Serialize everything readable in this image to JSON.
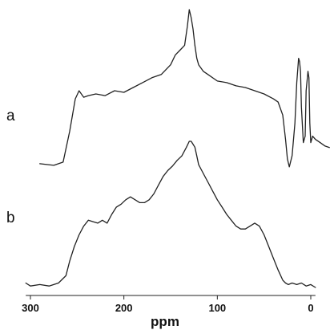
{
  "chart_data": {
    "type": "line",
    "xlabel": "ppm",
    "x_reversed": true,
    "xlim": [
      305,
      -5
    ],
    "xticks": [
      300,
      200,
      100,
      0
    ],
    "x_tick_labels": [
      "300",
      "200",
      "100",
      "0"
    ],
    "grid": false,
    "legend": "none",
    "series": [
      {
        "name": "a",
        "x": [
          290,
          275,
          265,
          258,
          252,
          248,
          243,
          238,
          230,
          220,
          210,
          200,
          190,
          180,
          170,
          160,
          150,
          145,
          140,
          135,
          132,
          130,
          128,
          126,
          124,
          122,
          120,
          115,
          110,
          100,
          90,
          80,
          70,
          60,
          50,
          40,
          35,
          30,
          27,
          25,
          23,
          20,
          17,
          15,
          13,
          12,
          11,
          10,
          8,
          6,
          5,
          3,
          2,
          1,
          0,
          -2,
          -5,
          -10,
          -15,
          -20
        ],
        "y": [
          0.05,
          0.04,
          0.06,
          0.25,
          0.45,
          0.5,
          0.46,
          0.47,
          0.48,
          0.47,
          0.5,
          0.49,
          0.52,
          0.55,
          0.58,
          0.6,
          0.66,
          0.72,
          0.75,
          0.78,
          0.9,
          1.0,
          0.95,
          0.88,
          0.78,
          0.7,
          0.66,
          0.62,
          0.6,
          0.56,
          0.55,
          0.53,
          0.52,
          0.5,
          0.48,
          0.45,
          0.43,
          0.35,
          0.2,
          0.08,
          0.03,
          0.1,
          0.3,
          0.55,
          0.7,
          0.68,
          0.62,
          0.4,
          0.18,
          0.22,
          0.5,
          0.62,
          0.58,
          0.3,
          0.18,
          0.22,
          0.2,
          0.18,
          0.16,
          0.15
        ]
      },
      {
        "name": "b",
        "x": [
          305,
          300,
          290,
          280,
          270,
          262,
          258,
          253,
          248,
          243,
          238,
          233,
          228,
          223,
          218,
          213,
          208,
          203,
          198,
          193,
          188,
          183,
          178,
          173,
          168,
          163,
          158,
          153,
          148,
          143,
          138,
          133,
          130,
          128,
          126,
          124,
          122,
          120,
          115,
          110,
          105,
          100,
          95,
          90,
          85,
          80,
          75,
          70,
          65,
          60,
          55,
          50,
          45,
          40,
          35,
          30,
          27,
          24,
          20,
          15,
          10,
          5,
          0,
          -5
        ],
        "y": [
          0.03,
          0.01,
          0.02,
          0.01,
          0.03,
          0.08,
          0.18,
          0.28,
          0.36,
          0.42,
          0.46,
          0.45,
          0.44,
          0.46,
          0.44,
          0.5,
          0.55,
          0.57,
          0.6,
          0.62,
          0.6,
          0.58,
          0.58,
          0.6,
          0.64,
          0.7,
          0.76,
          0.8,
          0.83,
          0.87,
          0.9,
          0.96,
          1.0,
          1.0,
          0.98,
          0.96,
          0.9,
          0.84,
          0.78,
          0.72,
          0.66,
          0.6,
          0.55,
          0.5,
          0.46,
          0.42,
          0.4,
          0.4,
          0.42,
          0.44,
          0.42,
          0.36,
          0.28,
          0.2,
          0.12,
          0.05,
          0.03,
          0.02,
          0.03,
          0.02,
          0.03,
          0.01,
          0.02,
          0.0
        ]
      }
    ]
  }
}
